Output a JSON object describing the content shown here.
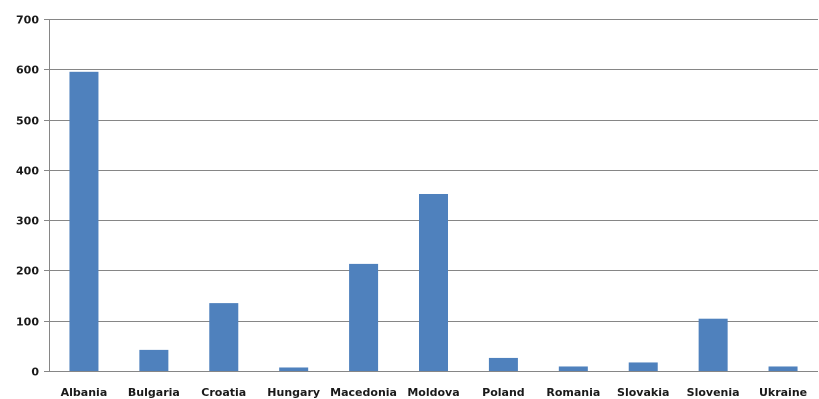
{
  "chart_data": {
    "type": "bar",
    "title": "",
    "xlabel": "",
    "ylabel": "",
    "categories": [
      "Albania",
      "Bulgaria",
      "Croatia",
      "Hungary",
      "Macedonia",
      "Moldova",
      "Poland",
      "Romania",
      "Slovakia",
      "Slovenia",
      "Ukraine"
    ],
    "values": [
      595,
      42,
      135,
      7,
      213,
      352,
      26,
      9,
      17,
      104,
      9
    ],
    "ylim": [
      0,
      700
    ],
    "yticks": [
      "0",
      "100",
      "200",
      "300",
      "400",
      "500",
      "600",
      "700"
    ],
    "grid": true,
    "legend": "none",
    "bar_color": "#4f81bd",
    "grid_color": "#868686"
  }
}
